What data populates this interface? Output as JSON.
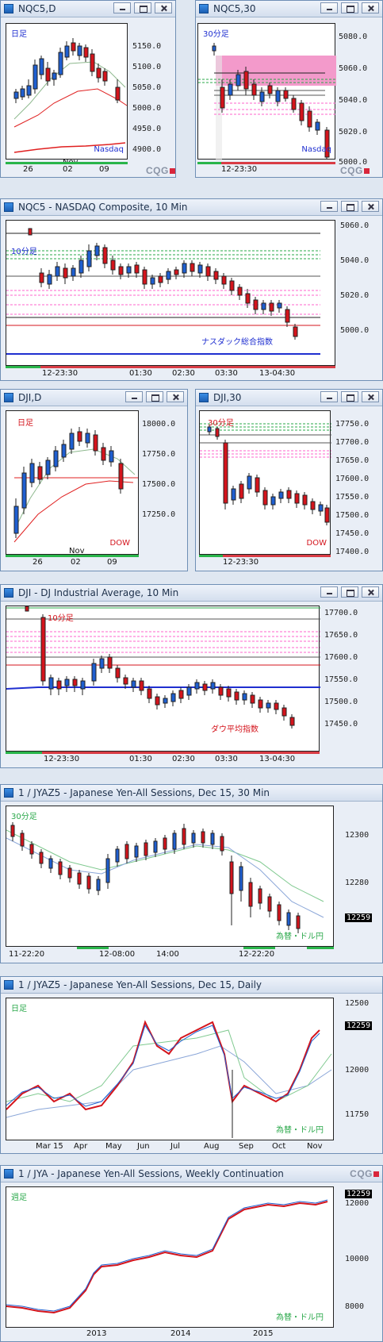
{
  "windows": {
    "nqc5_d": {
      "title": "NQC5,D",
      "tf_label": "日足",
      "source_label": "Nasdaq",
      "yticks": [
        "5150.0",
        "5100.0",
        "5050.0",
        "5000.0",
        "4950.0",
        "4900.0"
      ],
      "xticks": [
        "26",
        "02",
        "09"
      ],
      "xmonth": "Nov"
    },
    "nqc5_30": {
      "title": "NQC5,30",
      "tf_label": "30分足",
      "source_label": "Nasdaq",
      "yticks": [
        "5080.0",
        "5060.0",
        "5040.0",
        "5020.0",
        "5000.0"
      ],
      "xticks": [
        "12-23:30"
      ]
    },
    "nqc5_10": {
      "title": "NQC5 - NASDAQ Composite, 10 Min",
      "tf_label": "10分足",
      "source_label": "ナスダック総合指数",
      "yticks": [
        "5060.0",
        "5040.0",
        "5020.0",
        "5000.0"
      ],
      "xticks": [
        "12-23:30",
        "01:30",
        "02:30",
        "03:30",
        "13-04:30"
      ]
    },
    "dji_d": {
      "title": "DJI,D",
      "tf_label": "日足",
      "source_label": "DOW",
      "yticks": [
        "18000.0",
        "17750.0",
        "17500.0",
        "17250.0"
      ],
      "xticks": [
        "26",
        "02",
        "09"
      ],
      "xmonth": "Nov"
    },
    "dji_30": {
      "title": "DJI,30",
      "tf_label": "30分足",
      "source_label": "DOW",
      "yticks": [
        "17750.0",
        "17700.0",
        "17650.0",
        "17600.0",
        "17550.0",
        "17500.0",
        "17450.0",
        "17400.0"
      ],
      "xticks": [
        "12-23:30"
      ]
    },
    "dji_10": {
      "title": "DJI - DJ Industrial Average, 10 Min",
      "tf_label": "10分足",
      "source_label": "ダウ平均指数",
      "yticks": [
        "17700.0",
        "17650.0",
        "17600.0",
        "17550.0",
        "17500.0",
        "17450.0"
      ],
      "xticks": [
        "12-23:30",
        "01:30",
        "02:30",
        "03:30",
        "13-04:30"
      ]
    },
    "jyaz5_30": {
      "title": "1 / JYAZ5 - Japanese Yen-All Sessions, Dec 15, 30 Min",
      "tf_label": "30分足",
      "source_label": "為替・ドル円",
      "yticks": [
        "12300",
        "12280"
      ],
      "price": "12259",
      "xticks": [
        "11-22:20",
        "12-08:00",
        "14:00",
        "12-22:20"
      ]
    },
    "jyaz5_d": {
      "title": "1 / JYAZ5 - Japanese Yen-All Sessions, Dec 15, Daily",
      "tf_label": "日足",
      "source_label": "為替・ドル円",
      "yticks": [
        "12500",
        "12250",
        "12000",
        "11750"
      ],
      "price": "12259",
      "xticks": [
        "Mar 15",
        "Apr",
        "May",
        "Jun",
        "Jul",
        "Aug",
        "Sep",
        "Oct",
        "Nov"
      ]
    },
    "jya_w": {
      "title": "1 / JYA - Japanese Yen-All Sessions, Weekly Continuation",
      "tf_label": "週足",
      "source_label": "為替・ドル円",
      "yticks": [
        "12000",
        "10000",
        "8000"
      ],
      "price": "12259",
      "xticks": [
        "2013",
        "2014",
        "2015"
      ]
    }
  },
  "cqg": "CQG",
  "colors": {
    "up": "#1f5fd0",
    "down": "#d4141c",
    "ma_red": "#e02020",
    "ma_green": "#2aa84a",
    "fib_pink": "#ff66cc"
  }
}
